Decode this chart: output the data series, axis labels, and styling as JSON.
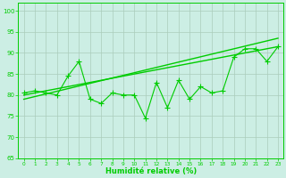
{
  "x": [
    0,
    1,
    2,
    3,
    4,
    5,
    6,
    7,
    8,
    9,
    10,
    11,
    12,
    13,
    14,
    15,
    16,
    17,
    18,
    19,
    20,
    21,
    22,
    23
  ],
  "y_data": [
    80.5,
    81,
    80.5,
    80,
    84.5,
    88,
    79,
    78,
    80.5,
    80,
    80,
    74.5,
    83,
    77,
    83.5,
    79,
    82,
    80.5,
    81,
    89,
    91,
    91,
    88,
    91.5
  ],
  "line_color": "#00cc00",
  "bg_color": "#cceee4",
  "grid_color": "#aaccbb",
  "xlabel": "Humidité relative (%)",
  "ylim": [
    65,
    102
  ],
  "xlim": [
    -0.5,
    23.5
  ],
  "yticks": [
    65,
    70,
    75,
    80,
    85,
    90,
    95,
    100
  ],
  "xticks": [
    0,
    1,
    2,
    3,
    4,
    5,
    6,
    7,
    8,
    9,
    10,
    11,
    12,
    13,
    14,
    15,
    16,
    17,
    18,
    19,
    20,
    21,
    22,
    23
  ],
  "trend_line1": [
    80.0,
    91.5
  ],
  "trend_line2": [
    79.0,
    93.5
  ],
  "figsize": [
    3.2,
    2.0
  ],
  "dpi": 100
}
